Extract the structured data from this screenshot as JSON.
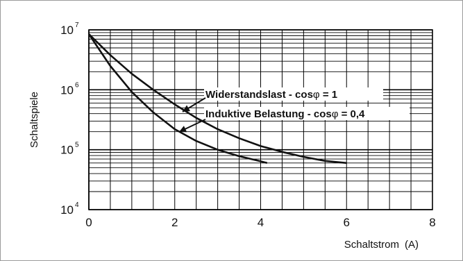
{
  "chart_data": {
    "type": "line",
    "title": "",
    "xlabel": "Schaltstrom",
    "xunit": "(A)",
    "ylabel": "Schaltspiele",
    "x_ticks": [
      "0",
      "2",
      "4",
      "6",
      "8"
    ],
    "y_ticks": [
      {
        "base": "10",
        "exp": "4"
      },
      {
        "base": "10",
        "exp": "5"
      },
      {
        "base": "10",
        "exp": "6"
      },
      {
        "base": "10",
        "exp": "7"
      }
    ],
    "xlim": [
      0,
      8
    ],
    "ylim": [
      10000,
      10000000
    ],
    "yscale": "log",
    "grid": true,
    "series": [
      {
        "name": "Widerstandslast - cosφ = 1",
        "x": [
          0,
          0.5,
          1,
          1.5,
          2,
          2.5,
          3,
          3.5,
          4,
          4.5,
          5,
          5.5,
          6
        ],
        "y": [
          8500000,
          3800000,
          1850000,
          1000000,
          570000,
          340000,
          220000,
          155000,
          115000,
          92000,
          76000,
          65000,
          60000
        ]
      },
      {
        "name": "Induktive Belastung - cosφ = 0,4",
        "x": [
          0,
          0.5,
          1,
          1.5,
          2,
          2.5,
          3,
          3.5,
          4,
          4.15
        ],
        "y": [
          8500000,
          2500000,
          920000,
          420000,
          220000,
          140000,
          100000,
          78000,
          64000,
          60000
        ]
      }
    ],
    "annotations": [
      {
        "text": "Widerstandslast - cos",
        "symbol": "φ",
        "tail": " = 1"
      },
      {
        "text": "Induktive Belastung - cos",
        "symbol": "φ",
        "tail": " = 0,4"
      }
    ],
    "colors": {
      "line": "#111111",
      "grid": "#000000",
      "frame": "#9a9a9a"
    }
  }
}
